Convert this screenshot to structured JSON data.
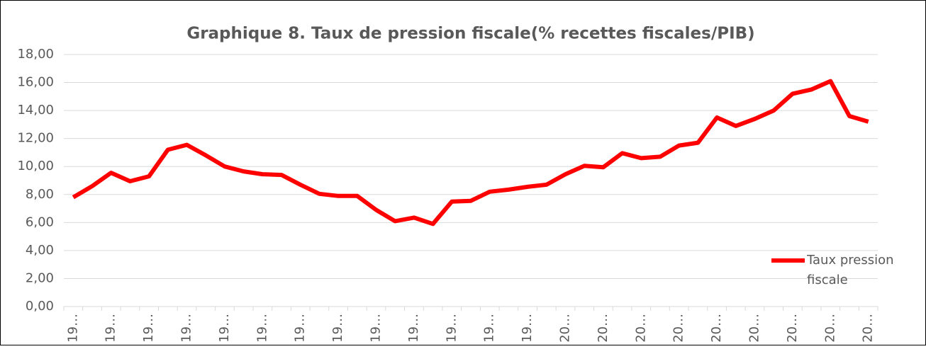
{
  "chart_data": {
    "type": "line",
    "title": "Graphique 8. Taux de pression fiscale(% recettes fiscales/PIB)",
    "categories": [
      "19…",
      null,
      "19…",
      null,
      "19…",
      null,
      "19…",
      null,
      "19…",
      null,
      "19…",
      null,
      "19…",
      null,
      "19…",
      null,
      "19…",
      null,
      "19…",
      null,
      "19…",
      null,
      "19…",
      null,
      "19…",
      null,
      "20…",
      null,
      "20…",
      null,
      "20…",
      null,
      "20…",
      null,
      "20…",
      null,
      "20…",
      null,
      "20…",
      null,
      "20…",
      null,
      "20…"
    ],
    "series": [
      {
        "name": "Taux pression fiscale",
        "color": "#ff0000",
        "values": [
          7.8,
          8.6,
          9.55,
          8.95,
          9.3,
          11.2,
          11.55,
          10.8,
          10.0,
          9.65,
          9.45,
          9.4,
          8.7,
          8.05,
          7.9,
          7.9,
          6.9,
          6.1,
          6.35,
          5.9,
          7.5,
          7.55,
          8.2,
          8.35,
          8.55,
          8.7,
          9.45,
          10.05,
          9.95,
          10.95,
          10.6,
          10.7,
          11.5,
          11.7,
          13.5,
          12.9,
          13.4,
          14.0,
          15.2,
          15.5,
          16.1,
          13.6,
          13.2
        ]
      }
    ],
    "ylim": [
      0,
      18
    ],
    "yticks": [
      {
        "value": 0,
        "label": "0,00"
      },
      {
        "value": 2,
        "label": "2,00"
      },
      {
        "value": 4,
        "label": "4,00"
      },
      {
        "value": 6,
        "label": "6,00"
      },
      {
        "value": 8,
        "label": "8,00"
      },
      {
        "value": 10,
        "label": "10,00"
      },
      {
        "value": 12,
        "label": "12,00"
      },
      {
        "value": 14,
        "label": "14,00"
      },
      {
        "value": 16,
        "label": "16,00"
      },
      {
        "value": 18,
        "label": "18,00"
      }
    ],
    "grid": true,
    "legend": "right"
  }
}
